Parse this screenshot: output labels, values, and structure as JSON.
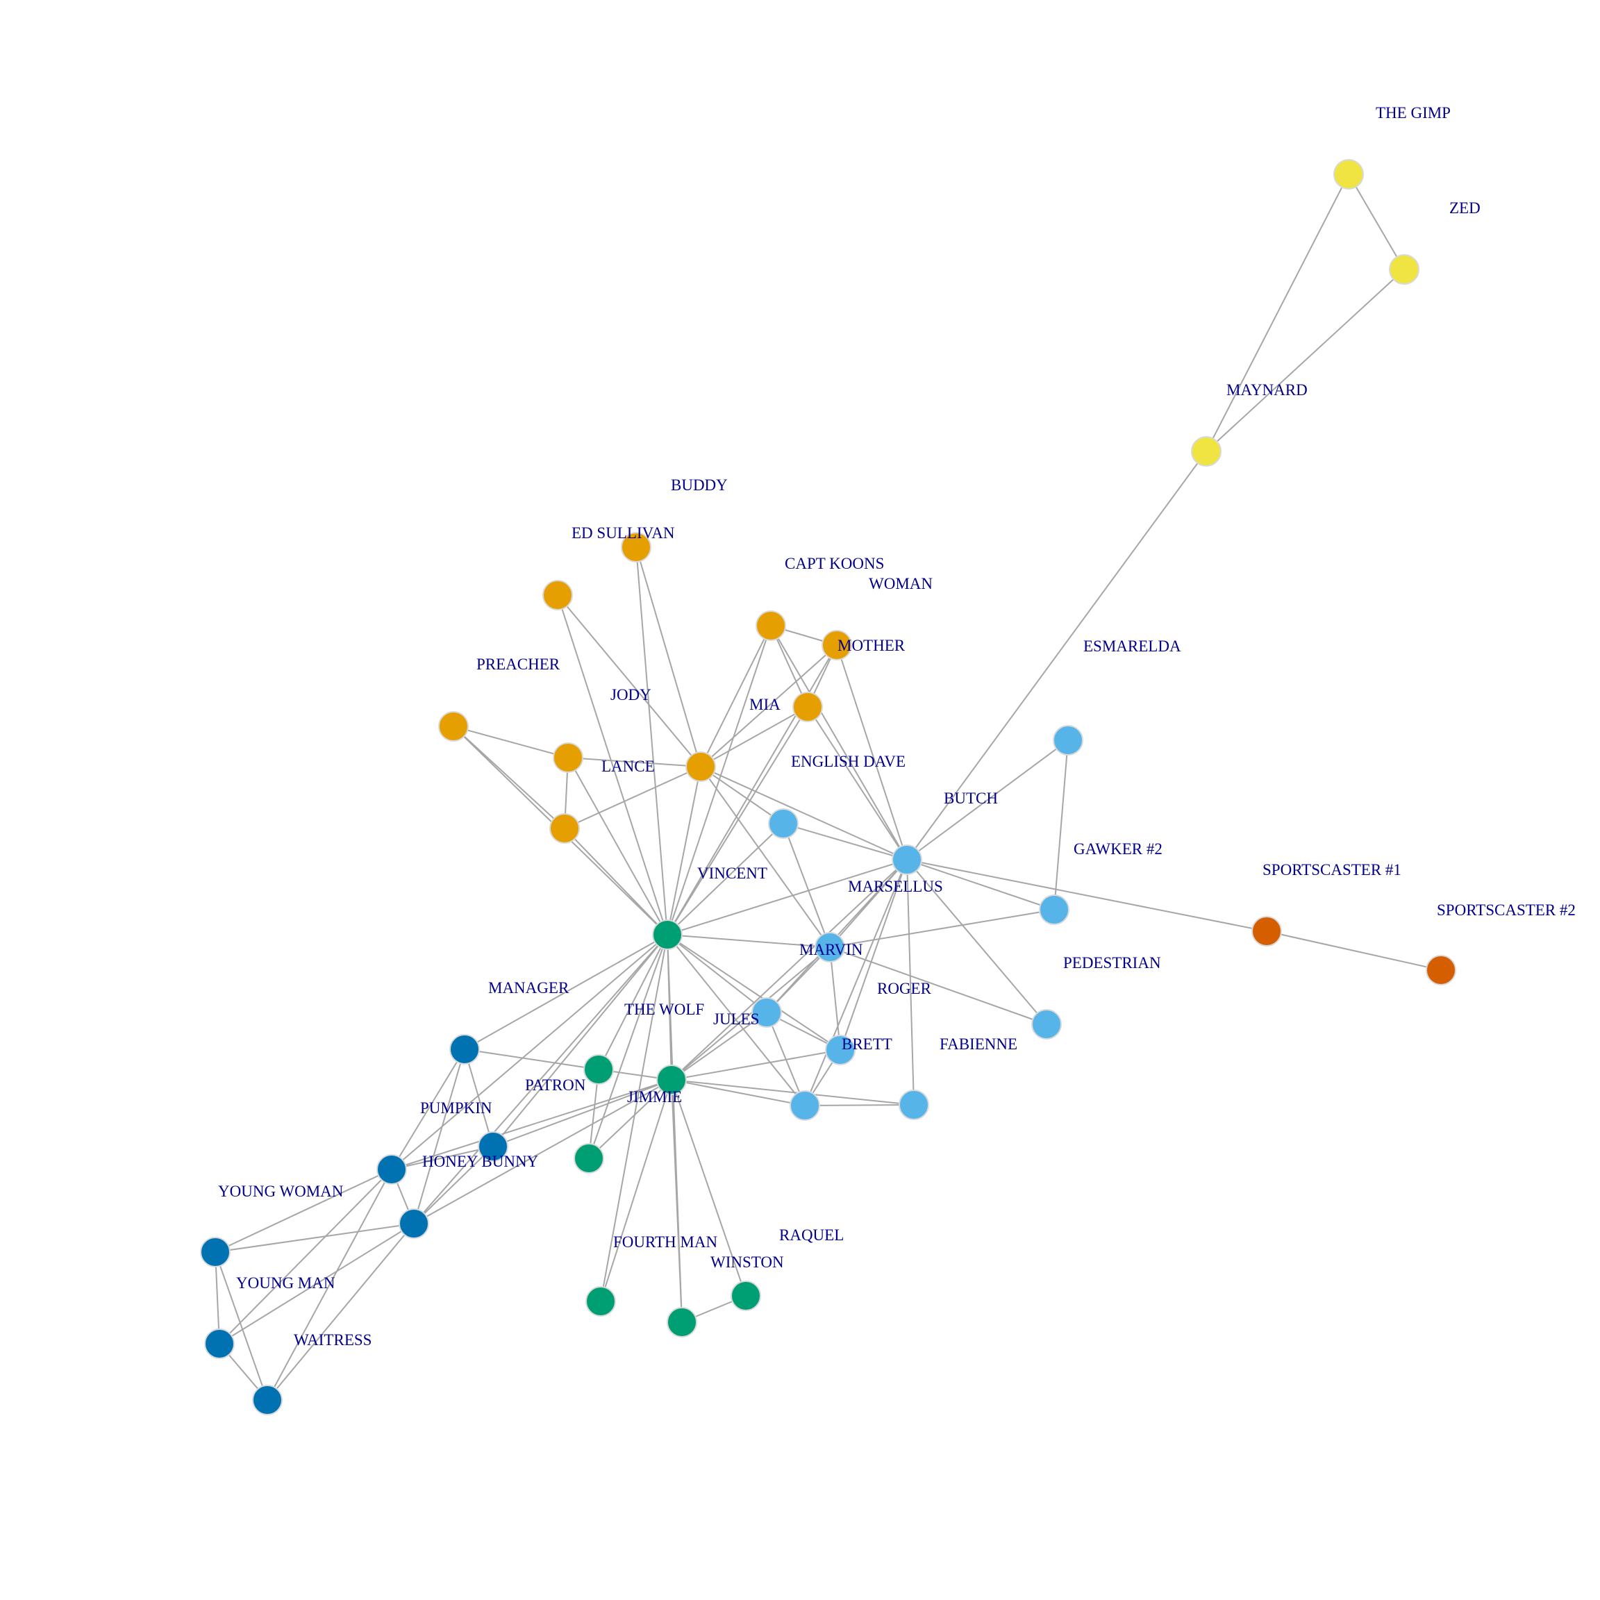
{
  "colors": {
    "orange": "#e69f00",
    "sky": "#56b4e9",
    "green": "#009e73",
    "yellow": "#f0e442",
    "blue": "#0072b2",
    "vermillion": "#d55e00",
    "edge": "#a6a6a6",
    "label": "#00008b"
  },
  "labels": [
    "THE GIMP",
    "ZED",
    "MAYNARD",
    "BUDDY",
    "ED SULLIVAN",
    "CAPT KOONS",
    "WOMAN",
    "MOTHER",
    "ESMARELDA",
    "PREACHER",
    "JODY",
    "MIA",
    "LANCE",
    "ENGLISH DAVE",
    "BUTCH",
    "GAWKER #2",
    "SPORTSCASTER #1",
    "SPORTSCASTER #2",
    "VINCENT",
    "MARSELLUS",
    "MARVIN",
    "PEDESTRIAN",
    "MANAGER",
    "ROGER",
    "THE WOLF",
    "JULES",
    "BRETT",
    "FABIENNE",
    "PATRON",
    "JIMMIE",
    "PUMPKIN",
    "HONEY BUNNY",
    "YOUNG WOMAN",
    "YOUNG MAN",
    "WAITRESS",
    "FOURTH MAN",
    "WINSTON",
    "RAQUEL"
  ],
  "nodes": [
    {
      "id": "n1",
      "color": "yellow"
    },
    {
      "id": "n2",
      "color": "yellow"
    },
    {
      "id": "n3",
      "color": "yellow"
    },
    {
      "id": "n4",
      "color": "orange"
    },
    {
      "id": "n5",
      "color": "orange"
    },
    {
      "id": "n6",
      "color": "orange"
    },
    {
      "id": "n7",
      "color": "orange"
    },
    {
      "id": "n8",
      "color": "orange"
    },
    {
      "id": "n9",
      "color": "orange"
    },
    {
      "id": "n10",
      "color": "orange"
    },
    {
      "id": "n11",
      "color": "orange"
    },
    {
      "id": "n12",
      "color": "orange"
    },
    {
      "id": "n13",
      "color": "sky"
    },
    {
      "id": "n14",
      "color": "sky"
    },
    {
      "id": "n15",
      "color": "sky"
    },
    {
      "id": "n16",
      "color": "sky"
    },
    {
      "id": "n17",
      "color": "sky"
    },
    {
      "id": "n18",
      "color": "sky"
    },
    {
      "id": "n19",
      "color": "sky"
    },
    {
      "id": "n20",
      "color": "sky"
    },
    {
      "id": "n21",
      "color": "sky"
    },
    {
      "id": "n22",
      "color": "sky"
    },
    {
      "id": "n23",
      "color": "vermillion"
    },
    {
      "id": "n24",
      "color": "vermillion"
    },
    {
      "id": "n25",
      "color": "green"
    },
    {
      "id": "n26",
      "color": "green"
    },
    {
      "id": "n27",
      "color": "green"
    },
    {
      "id": "n28",
      "color": "green"
    },
    {
      "id": "n29",
      "color": "green"
    },
    {
      "id": "n30",
      "color": "green"
    },
    {
      "id": "n31",
      "color": "green"
    },
    {
      "id": "n32",
      "color": "blue"
    },
    {
      "id": "n33",
      "color": "blue"
    },
    {
      "id": "n34",
      "color": "blue"
    },
    {
      "id": "n35",
      "color": "blue"
    },
    {
      "id": "n36",
      "color": "blue"
    },
    {
      "id": "n37",
      "color": "blue"
    },
    {
      "id": "n38",
      "color": "blue"
    }
  ],
  "edges": [
    [
      "n1",
      "n2"
    ],
    [
      "n1",
      "n3"
    ],
    [
      "n2",
      "n3"
    ],
    [
      "n3",
      "n14"
    ],
    [
      "n4",
      "n10"
    ],
    [
      "n4",
      "n25"
    ],
    [
      "n5",
      "n10"
    ],
    [
      "n5",
      "n25"
    ],
    [
      "n6",
      "n7"
    ],
    [
      "n6",
      "n8"
    ],
    [
      "n6",
      "n10"
    ],
    [
      "n6",
      "n25"
    ],
    [
      "n6",
      "n14"
    ],
    [
      "n7",
      "n8"
    ],
    [
      "n7",
      "n10"
    ],
    [
      "n7",
      "n25"
    ],
    [
      "n7",
      "n14"
    ],
    [
      "n8",
      "n10"
    ],
    [
      "n8",
      "n25"
    ],
    [
      "n8",
      "n14"
    ],
    [
      "n9",
      "n11"
    ],
    [
      "n9",
      "n12"
    ],
    [
      "n9",
      "n25"
    ],
    [
      "n11",
      "n12"
    ],
    [
      "n11",
      "n10"
    ],
    [
      "n11",
      "n25"
    ],
    [
      "n12",
      "n10"
    ],
    [
      "n12",
      "n25"
    ],
    [
      "n10",
      "n25"
    ],
    [
      "n10",
      "n14"
    ],
    [
      "n10",
      "n15"
    ],
    [
      "n10",
      "n13"
    ],
    [
      "n13",
      "n25"
    ],
    [
      "n13",
      "n14"
    ],
    [
      "n13",
      "n15"
    ],
    [
      "n14",
      "n25"
    ],
    [
      "n14",
      "n17"
    ],
    [
      "n14",
      "n16"
    ],
    [
      "n14",
      "n18"
    ],
    [
      "n14",
      "n23"
    ],
    [
      "n14",
      "n15"
    ],
    [
      "n14",
      "n19"
    ],
    [
      "n14",
      "n20"
    ],
    [
      "n14",
      "n21"
    ],
    [
      "n14",
      "n22"
    ],
    [
      "n14",
      "n26"
    ],
    [
      "n15",
      "n25"
    ],
    [
      "n15",
      "n16"
    ],
    [
      "n15",
      "n18"
    ],
    [
      "n15",
      "n19"
    ],
    [
      "n15",
      "n20"
    ],
    [
      "n15",
      "n26"
    ],
    [
      "n16",
      "n17"
    ],
    [
      "n23",
      "n24"
    ],
    [
      "n25",
      "n19"
    ],
    [
      "n25",
      "n20"
    ],
    [
      "n25",
      "n21"
    ],
    [
      "n25",
      "n26"
    ],
    [
      "n25",
      "n27"
    ],
    [
      "n25",
      "n28"
    ],
    [
      "n25",
      "n29"
    ],
    [
      "n25",
      "n31"
    ],
    [
      "n25",
      "n32"
    ],
    [
      "n25",
      "n33"
    ],
    [
      "n25",
      "n34"
    ],
    [
      "n25",
      "n35"
    ],
    [
      "n19",
      "n26"
    ],
    [
      "n19",
      "n20"
    ],
    [
      "n19",
      "n21"
    ],
    [
      "n20",
      "n26"
    ],
    [
      "n20",
      "n21"
    ],
    [
      "n21",
      "n22"
    ],
    [
      "n21",
      "n26"
    ],
    [
      "n22",
      "n26"
    ],
    [
      "n26",
      "n27"
    ],
    [
      "n26",
      "n28"
    ],
    [
      "n26",
      "n29"
    ],
    [
      "n26",
      "n30"
    ],
    [
      "n26",
      "n31"
    ],
    [
      "n26",
      "n33"
    ],
    [
      "n26",
      "n34"
    ],
    [
      "n26",
      "n35"
    ],
    [
      "n27",
      "n28"
    ],
    [
      "n27",
      "n32"
    ],
    [
      "n30",
      "n31"
    ],
    [
      "n32",
      "n33"
    ],
    [
      "n32",
      "n34"
    ],
    [
      "n32",
      "n35"
    ],
    [
      "n33",
      "n34"
    ],
    [
      "n33",
      "n35"
    ],
    [
      "n34",
      "n35"
    ],
    [
      "n34",
      "n36"
    ],
    [
      "n34",
      "n37"
    ],
    [
      "n34",
      "n38"
    ],
    [
      "n35",
      "n36"
    ],
    [
      "n35",
      "n37"
    ],
    [
      "n35",
      "n38"
    ],
    [
      "n36",
      "n37"
    ],
    [
      "n36",
      "n38"
    ],
    [
      "n37",
      "n38"
    ]
  ]
}
